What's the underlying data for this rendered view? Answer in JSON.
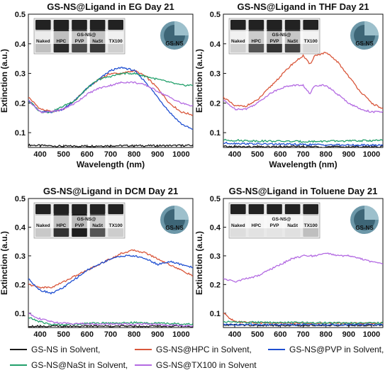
{
  "figure": {
    "legend": [
      {
        "label": "GS-NS in Solvent,",
        "color": "#1a1a1a"
      },
      {
        "label": "GS-NS@HPC in Solvent,",
        "color": "#d9573b"
      },
      {
        "label": "GS-NS@PVP in Solvent,",
        "color": "#1f4fd1"
      },
      {
        "label": "GS-NS@NaSt in Solvent,",
        "color": "#22a06b"
      },
      {
        "label": "GS-NS@TX100 in Solvent",
        "color": "#b36ae2"
      }
    ],
    "inset": {
      "vials_title": "GS-NS@",
      "vial_labels": [
        "Naked",
        "HPC",
        "PVP",
        "NaSt",
        "TX100"
      ],
      "badge": "GS-NS"
    }
  },
  "chart_data": [
    {
      "type": "line",
      "title": "GS-NS@Ligand in EG Day 21",
      "xlabel": "Wavelength (nm)",
      "ylabel": "Extinction (a.u.)",
      "xlim": [
        350,
        1050
      ],
      "ylim": [
        0.05,
        0.5
      ],
      "xticks": [
        400,
        500,
        600,
        700,
        800,
        900,
        1000
      ],
      "yticks": [
        0.1,
        0.2,
        0.3,
        0.4,
        0.5
      ],
      "series": [
        {
          "name": "GS-NS in Solvent,",
          "color": "#1a1a1a",
          "x": [
            350,
            500,
            700,
            900,
            1050
          ],
          "y": [
            0.058,
            0.054,
            0.056,
            0.056,
            0.057
          ]
        },
        {
          "name": "GS-NS@HPC in Solvent,",
          "color": "#d9573b",
          "x": [
            350,
            400,
            450,
            500,
            550,
            600,
            650,
            700,
            750,
            800,
            850,
            900,
            950,
            1000,
            1050
          ],
          "y": [
            0.22,
            0.18,
            0.17,
            0.18,
            0.21,
            0.25,
            0.28,
            0.3,
            0.3,
            0.31,
            0.29,
            0.25,
            0.2,
            0.17,
            0.16
          ]
        },
        {
          "name": "GS-NS@PVP in Solvent,",
          "color": "#1f4fd1",
          "x": [
            350,
            400,
            450,
            500,
            550,
            600,
            650,
            700,
            750,
            800,
            850,
            900,
            950,
            1000,
            1050
          ],
          "y": [
            0.21,
            0.17,
            0.17,
            0.18,
            0.21,
            0.25,
            0.28,
            0.31,
            0.32,
            0.31,
            0.27,
            0.22,
            0.17,
            0.13,
            0.11
          ]
        },
        {
          "name": "GS-NS@NaSt in Solvent,",
          "color": "#22a06b",
          "x": [
            350,
            400,
            450,
            500,
            550,
            600,
            650,
            700,
            750,
            800,
            850,
            900,
            950,
            1000,
            1050
          ],
          "y": [
            0.21,
            0.17,
            0.17,
            0.19,
            0.21,
            0.25,
            0.28,
            0.29,
            0.3,
            0.3,
            0.29,
            0.28,
            0.27,
            0.26,
            0.26
          ]
        },
        {
          "name": "GS-NS@TX100 in Solvent",
          "color": "#b36ae2",
          "x": [
            350,
            400,
            450,
            500,
            550,
            600,
            650,
            700,
            750,
            800,
            850,
            900,
            950,
            1000,
            1050
          ],
          "y": [
            0.21,
            0.17,
            0.17,
            0.18,
            0.2,
            0.23,
            0.25,
            0.26,
            0.27,
            0.27,
            0.26,
            0.24,
            0.22,
            0.2,
            0.19
          ]
        }
      ]
    },
    {
      "type": "line",
      "title": "GS-NS@Ligand in THF Day 21",
      "xlabel": "Wavelength (nm)",
      "ylabel": "Extinction (a.u.)",
      "xlim": [
        350,
        1050
      ],
      "ylim": [
        0.05,
        0.5
      ],
      "xticks": [
        400,
        500,
        600,
        700,
        800,
        900,
        1000
      ],
      "yticks": [
        0.1,
        0.2,
        0.3,
        0.4,
        0.5
      ],
      "series": [
        {
          "name": "GS-NS in Solvent,",
          "color": "#1a1a1a",
          "x": [
            350,
            500,
            700,
            900,
            1050
          ],
          "y": [
            0.053,
            0.052,
            0.053,
            0.052,
            0.053
          ]
        },
        {
          "name": "GS-NS@HPC in Solvent,",
          "color": "#d9573b",
          "x": [
            350,
            400,
            450,
            500,
            550,
            600,
            650,
            700,
            730,
            750,
            800,
            850,
            900,
            950,
            1000,
            1050
          ],
          "y": [
            0.22,
            0.19,
            0.19,
            0.21,
            0.25,
            0.29,
            0.33,
            0.36,
            0.33,
            0.36,
            0.37,
            0.34,
            0.29,
            0.24,
            0.2,
            0.18
          ]
        },
        {
          "name": "GS-NS@PVP in Solvent,",
          "color": "#1f4fd1",
          "x": [
            350,
            500,
            700,
            900,
            1050
          ],
          "y": [
            0.065,
            0.062,
            0.06,
            0.058,
            0.058
          ]
        },
        {
          "name": "GS-NS@NaSt in Solvent,",
          "color": "#22a06b",
          "x": [
            350,
            500,
            700,
            900,
            1050
          ],
          "y": [
            0.075,
            0.072,
            0.07,
            0.072,
            0.074
          ]
        },
        {
          "name": "GS-NS@TX100 in Solvent",
          "color": "#b36ae2",
          "x": [
            350,
            400,
            450,
            500,
            550,
            600,
            650,
            700,
            730,
            750,
            800,
            850,
            900,
            950,
            1000,
            1050
          ],
          "y": [
            0.21,
            0.18,
            0.18,
            0.2,
            0.23,
            0.25,
            0.26,
            0.26,
            0.23,
            0.26,
            0.26,
            0.23,
            0.2,
            0.18,
            0.17,
            0.17
          ]
        }
      ]
    },
    {
      "type": "line",
      "title": "GS-NS@Ligand in DCM Day 21",
      "xlabel": "Wavelength (nm)",
      "ylabel": "Extinction (a.u.)",
      "xlim": [
        350,
        1050
      ],
      "ylim": [
        0.05,
        0.5
      ],
      "xticks": [
        400,
        500,
        600,
        700,
        800,
        900,
        1000
      ],
      "yticks": [
        0.1,
        0.2,
        0.3,
        0.4,
        0.5
      ],
      "series": [
        {
          "name": "GS-NS in Solvent,",
          "color": "#1a1a1a",
          "x": [
            350,
            500,
            700,
            900,
            1050
          ],
          "y": [
            0.055,
            0.055,
            0.055,
            0.055,
            0.055
          ]
        },
        {
          "name": "GS-NS@HPC in Solvent,",
          "color": "#d9573b",
          "x": [
            350,
            400,
            450,
            500,
            550,
            600,
            650,
            700,
            750,
            800,
            850,
            900,
            950,
            1000,
            1050
          ],
          "y": [
            0.2,
            0.19,
            0.19,
            0.21,
            0.23,
            0.25,
            0.27,
            0.29,
            0.31,
            0.32,
            0.31,
            0.29,
            0.27,
            0.25,
            0.23
          ]
        },
        {
          "name": "GS-NS@PVP in Solvent,",
          "color": "#1f4fd1",
          "x": [
            350,
            400,
            450,
            500,
            550,
            600,
            650,
            700,
            750,
            800,
            850,
            900,
            950,
            1000,
            1050
          ],
          "y": [
            0.22,
            0.18,
            0.17,
            0.19,
            0.22,
            0.25,
            0.27,
            0.29,
            0.3,
            0.3,
            0.29,
            0.27,
            0.28,
            0.27,
            0.26
          ]
        },
        {
          "name": "GS-NS@NaSt in Solvent,",
          "color": "#22a06b",
          "x": [
            350,
            400,
            450,
            500,
            550,
            600,
            650,
            700,
            750,
            800,
            850,
            900,
            950,
            1000,
            1050
          ],
          "y": [
            0.085,
            0.07,
            0.06,
            0.06,
            0.062,
            0.065,
            0.065,
            0.066,
            0.066,
            0.067,
            0.066,
            0.065,
            0.064,
            0.063,
            0.062
          ]
        },
        {
          "name": "GS-NS@TX100 in Solvent",
          "color": "#b36ae2",
          "x": [
            350,
            400,
            450,
            500,
            550,
            600,
            650,
            700,
            750,
            800,
            850,
            900,
            950,
            1000,
            1050
          ],
          "y": [
            0.1,
            0.08,
            0.07,
            0.065,
            0.064,
            0.063,
            0.062,
            0.062,
            0.062,
            0.062,
            0.062,
            0.06,
            0.058,
            0.057,
            0.055
          ]
        }
      ]
    },
    {
      "type": "line",
      "title": "GS-NS@Ligand in Toluene Day 21",
      "xlabel": "Wavelength (nm)",
      "ylabel": "Extinction (a.u.)",
      "xlim": [
        350,
        1050
      ],
      "ylim": [
        0.05,
        0.5
      ],
      "xticks": [
        400,
        500,
        600,
        700,
        800,
        900,
        1000
      ],
      "yticks": [
        0.1,
        0.2,
        0.3,
        0.4,
        0.5
      ],
      "series": [
        {
          "name": "GS-NS in Solvent,",
          "color": "#1a1a1a",
          "x": [
            350,
            500,
            700,
            900,
            1050
          ],
          "y": [
            0.06,
            0.058,
            0.058,
            0.058,
            0.058
          ]
        },
        {
          "name": "GS-NS@HPC in Solvent,",
          "color": "#d9573b",
          "x": [
            350,
            400,
            500,
            700,
            900,
            1050
          ],
          "y": [
            0.1,
            0.07,
            0.066,
            0.065,
            0.065,
            0.065
          ]
        },
        {
          "name": "GS-NS@PVP in Solvent,",
          "color": "#1f4fd1",
          "x": [
            350,
            500,
            700,
            900,
            1050
          ],
          "y": [
            0.06,
            0.06,
            0.06,
            0.06,
            0.06
          ]
        },
        {
          "name": "GS-NS@NaSt in Solvent,",
          "color": "#22a06b",
          "x": [
            350,
            500,
            700,
            900,
            1050
          ],
          "y": [
            0.07,
            0.068,
            0.067,
            0.066,
            0.066
          ]
        },
        {
          "name": "GS-NS@TX100 in Solvent",
          "color": "#b36ae2",
          "x": [
            350,
            400,
            450,
            500,
            550,
            600,
            650,
            700,
            750,
            800,
            850,
            900,
            950,
            1000,
            1050
          ],
          "y": [
            0.22,
            0.21,
            0.22,
            0.23,
            0.25,
            0.27,
            0.29,
            0.3,
            0.3,
            0.31,
            0.3,
            0.3,
            0.29,
            0.28,
            0.27
          ]
        }
      ]
    }
  ]
}
